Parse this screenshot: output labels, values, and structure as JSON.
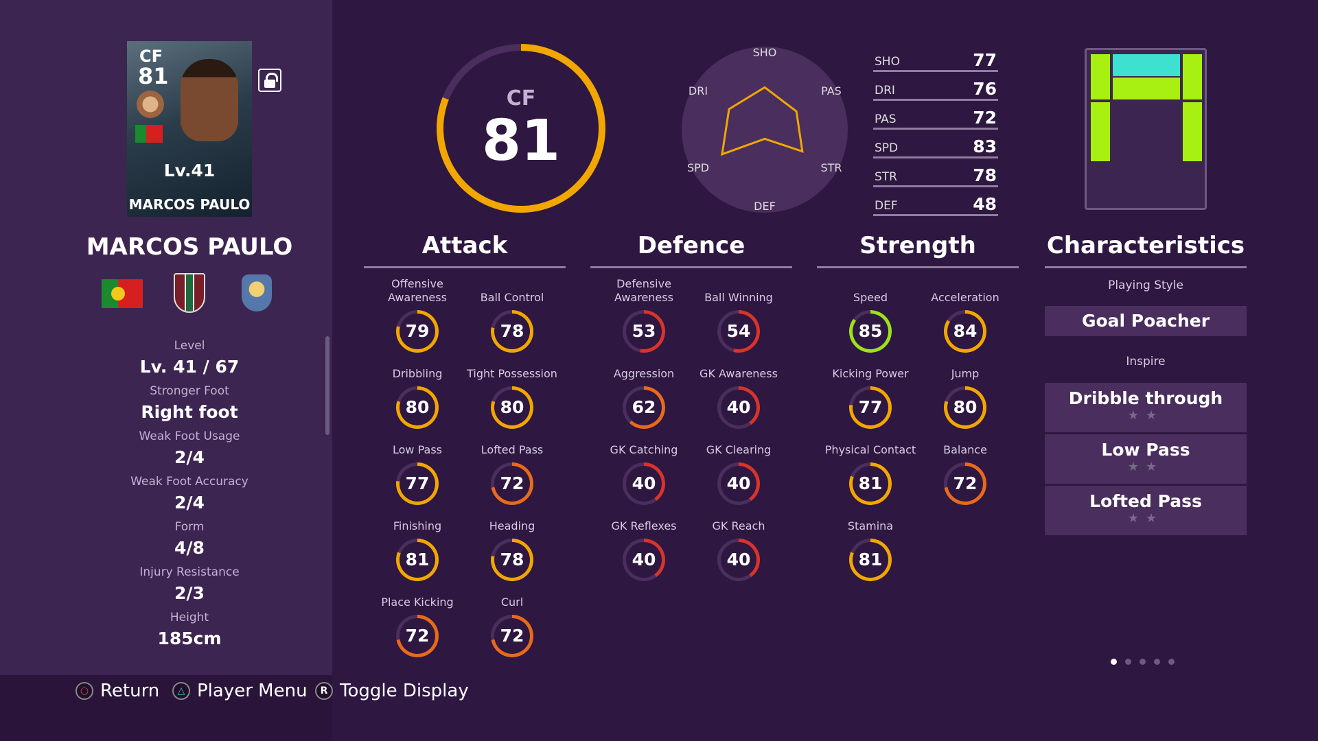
{
  "card": {
    "position": "CF",
    "overall": "81",
    "level": "Lv.41",
    "name": "MARCOS PAULO"
  },
  "player": {
    "name": "MARCOS PAULO",
    "info": [
      {
        "label": "Level",
        "value": "Lv. 41 / 67"
      },
      {
        "label": "Stronger Foot",
        "value": "Right foot"
      },
      {
        "label": "Weak Foot Usage",
        "value": "2/4"
      },
      {
        "label": "Weak Foot Accuracy",
        "value": "2/4"
      },
      {
        "label": "Form",
        "value": "4/8"
      },
      {
        "label": "Injury Resistance",
        "value": "2/3"
      },
      {
        "label": "Height",
        "value": "185cm"
      }
    ]
  },
  "overall_ring": {
    "position": "CF",
    "rating": "81",
    "fill": 81
  },
  "radar": {
    "labels": [
      "SHO",
      "PAS",
      "STR",
      "DEF",
      "SPD",
      "DRI"
    ],
    "values": [
      77,
      72,
      78,
      48,
      83,
      76
    ]
  },
  "summary": [
    {
      "key": "SHO",
      "value": "77"
    },
    {
      "key": "DRI",
      "value": "76"
    },
    {
      "key": "PAS",
      "value": "72"
    },
    {
      "key": "SPD",
      "value": "83"
    },
    {
      "key": "STR",
      "value": "78"
    },
    {
      "key": "DEF",
      "value": "48"
    }
  ],
  "categories": {
    "attack": {
      "title": "Attack",
      "stats": [
        {
          "label": "Offensive Awareness",
          "value": "79"
        },
        {
          "label": "Ball Control",
          "value": "78"
        },
        {
          "label": "Dribbling",
          "value": "80"
        },
        {
          "label": "Tight Possession",
          "value": "80"
        },
        {
          "label": "Low Pass",
          "value": "77"
        },
        {
          "label": "Lofted Pass",
          "value": "72"
        },
        {
          "label": "Finishing",
          "value": "81"
        },
        {
          "label": "Heading",
          "value": "78"
        },
        {
          "label": "Place Kicking",
          "value": "72"
        },
        {
          "label": "Curl",
          "value": "72"
        }
      ]
    },
    "defence": {
      "title": "Defence",
      "stats": [
        {
          "label": "Defensive Awareness",
          "value": "53"
        },
        {
          "label": "Ball Winning",
          "value": "54"
        },
        {
          "label": "Aggression",
          "value": "62"
        },
        {
          "label": "GK Awareness",
          "value": "40"
        },
        {
          "label": "GK Catching",
          "value": "40"
        },
        {
          "label": "GK Clearing",
          "value": "40"
        },
        {
          "label": "GK Reflexes",
          "value": "40"
        },
        {
          "label": "GK Reach",
          "value": "40"
        }
      ]
    },
    "strength": {
      "title": "Strength",
      "stats": [
        {
          "label": "Speed",
          "value": "85"
        },
        {
          "label": "Acceleration",
          "value": "84"
        },
        {
          "label": "Kicking Power",
          "value": "77"
        },
        {
          "label": "Jump",
          "value": "80"
        },
        {
          "label": "Physical Contact",
          "value": "81"
        },
        {
          "label": "Balance",
          "value": "72"
        },
        {
          "label": "Stamina",
          "value": "81"
        }
      ]
    }
  },
  "characteristics": {
    "title": "Characteristics",
    "playing_style_label": "Playing Style",
    "playing_style": "Goal Poacher",
    "inspire_label": "Inspire",
    "inspire": [
      "Dribble through",
      "Low Pass",
      "Lofted Pass"
    ],
    "stars": "★★"
  },
  "buttons": [
    {
      "icon": "circle-icon",
      "glyph": "○",
      "label": "Return"
    },
    {
      "icon": "triangle-icon",
      "glyph": "△",
      "label": "Player Menu"
    },
    {
      "icon": "r-button-icon",
      "glyph": "R",
      "label": "Toggle Display"
    }
  ],
  "page_dots": {
    "count": 5,
    "active": 1
  },
  "colors": {
    "high": "#9be21a",
    "good": "#f2a600",
    "mid": "#e86a1a",
    "low": "#d8342a",
    "accent": "#a8f012"
  }
}
